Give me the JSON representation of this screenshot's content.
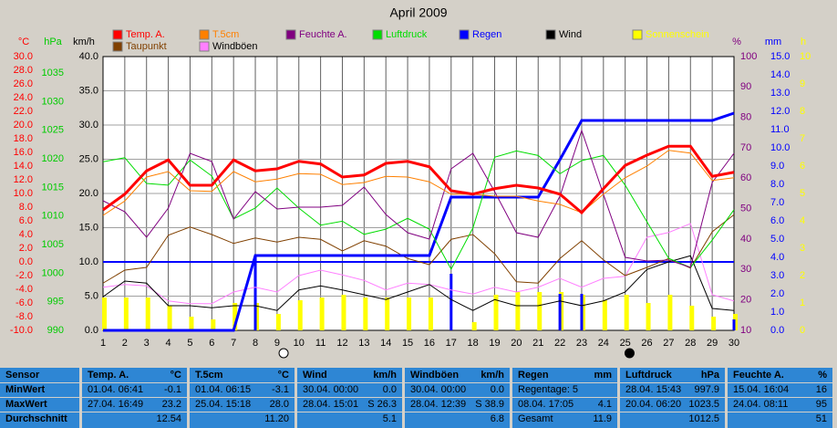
{
  "chart_data": {
    "type": "line",
    "title": "April 2009",
    "x": [
      1,
      2,
      3,
      4,
      5,
      6,
      7,
      8,
      9,
      10,
      11,
      12,
      13,
      14,
      15,
      16,
      17,
      18,
      19,
      20,
      21,
      22,
      23,
      24,
      25,
      26,
      27,
      28,
      29,
      30
    ],
    "xlim": [
      1,
      30
    ],
    "xticks": [
      1,
      2,
      3,
      4,
      5,
      6,
      7,
      8,
      9,
      10,
      11,
      12,
      13,
      14,
      15,
      16,
      17,
      18,
      19,
      20,
      21,
      22,
      23,
      24,
      25,
      26,
      27,
      28,
      29,
      30
    ],
    "grid": true,
    "grid_axis": 2,
    "freeze_line": 0,
    "moon": {
      "full": 9.3,
      "new": 25.2
    },
    "axes": [
      {
        "label": "°C",
        "color": "#ff0000",
        "ylim": [
          -10,
          30
        ],
        "yticks": [
          {
            "value": -10,
            "label": "-10.0"
          },
          {
            "value": -8,
            "label": "-8.0"
          },
          {
            "value": -6,
            "label": "-6.0"
          },
          {
            "value": -4,
            "label": "-4.0"
          },
          {
            "value": -2,
            "label": "-2.0"
          },
          {
            "value": 0,
            "label": "0.0"
          },
          {
            "value": 2,
            "label": "2.0"
          },
          {
            "value": 4,
            "label": "4.0"
          },
          {
            "value": 6,
            "label": "6.0"
          },
          {
            "value": 8,
            "label": "8.0"
          },
          {
            "value": 10,
            "label": "10.0"
          },
          {
            "value": 12,
            "label": "12.0"
          },
          {
            "value": 14,
            "label": "14.0"
          },
          {
            "value": 16,
            "label": "16.0"
          },
          {
            "value": 18,
            "label": "18.0"
          },
          {
            "value": 20,
            "label": "20.0"
          },
          {
            "value": 22,
            "label": "22.0"
          },
          {
            "value": 24,
            "label": "24.0"
          },
          {
            "value": 26,
            "label": "26.0"
          },
          {
            "value": 28,
            "label": "28.0"
          },
          {
            "value": 30,
            "label": "30.0"
          }
        ]
      },
      {
        "label": "hPa",
        "color": "#00cc00",
        "ylim": [
          990,
          1037.9
        ],
        "yticks": [
          990,
          995,
          1000,
          1005,
          1010,
          1015,
          1020,
          1025,
          1030,
          1035
        ]
      },
      {
        "label": "km/h",
        "color": "#000000",
        "ylim": [
          0,
          40
        ],
        "yticks": [
          {
            "value": 0,
            "label": "0.0"
          },
          {
            "value": 5,
            "label": "5.0"
          },
          {
            "value": 10,
            "label": "10.0"
          },
          {
            "value": 15,
            "label": "15.0"
          },
          {
            "value": 20,
            "label": "20.0"
          },
          {
            "value": 25,
            "label": "25.0"
          },
          {
            "value": 30,
            "label": "30.0"
          },
          {
            "value": 35,
            "label": "35.0"
          },
          {
            "value": 40,
            "label": "40.0"
          }
        ]
      },
      {
        "label": "%",
        "color": "#800080",
        "ylim": [
          10,
          100
        ],
        "yticks": [
          10,
          20,
          30,
          40,
          50,
          60,
          70,
          80,
          90,
          100
        ]
      },
      {
        "label": "mm",
        "color": "#0000ff",
        "ylim": [
          0,
          15
        ],
        "yticks": [
          {
            "value": 0,
            "label": "0.0"
          },
          {
            "value": 1,
            "label": "1.0"
          },
          {
            "value": 2,
            "label": "2.0"
          },
          {
            "value": 3,
            "label": "3.0"
          },
          {
            "value": 4,
            "label": "4.0"
          },
          {
            "value": 5,
            "label": "5.0"
          },
          {
            "value": 6,
            "label": "6.0"
          },
          {
            "value": 7,
            "label": "7.0"
          },
          {
            "value": 8,
            "label": "8.0"
          },
          {
            "value": 9,
            "label": "9.0"
          },
          {
            "value": 10,
            "label": "10.0"
          },
          {
            "value": 11,
            "label": "11.0"
          },
          {
            "value": 12,
            "label": "12.0"
          },
          {
            "value": 13,
            "label": "13.0"
          },
          {
            "value": 14,
            "label": "14.0"
          },
          {
            "value": 15,
            "label": "15.0"
          }
        ]
      },
      {
        "label": "h",
        "color": "#ffff00",
        "ylim": [
          0,
          10
        ],
        "yticks": [
          0,
          1,
          2,
          3,
          4,
          5,
          6,
          7,
          8,
          9,
          10
        ]
      }
    ],
    "series": [
      {
        "name": "Temp. A.",
        "color": "#ff0000",
        "text_color": "#ff0000",
        "axis": 0,
        "kind": "line",
        "width": 3,
        "values": [
          7.6,
          9.9,
          13.3,
          14.9,
          11.2,
          11.2,
          14.9,
          13.3,
          13.6,
          14.7,
          14.3,
          12.4,
          12.7,
          14.4,
          14.7,
          13.9,
          10.4,
          9.9,
          10.7,
          11.2,
          10.8,
          9.9,
          7.2,
          10.7,
          14.1,
          15.6,
          16.9,
          16.9,
          12.5,
          13.1
        ]
      },
      {
        "name": "T.5cm",
        "color": "#ff8000",
        "text_color": "#ff8000",
        "axis": 0,
        "kind": "line",
        "width": 1,
        "values": [
          6.8,
          8.9,
          12.4,
          13.2,
          10.4,
          10.3,
          13.2,
          11.7,
          12.1,
          12.9,
          12.8,
          11.3,
          11.6,
          12.5,
          12.4,
          11.7,
          9.9,
          9.9,
          9.6,
          9.6,
          8.9,
          8.4,
          7.2,
          9.9,
          12.3,
          14.0,
          16.3,
          15.9,
          11.9,
          12.3
        ]
      },
      {
        "name": "Feuchte A.",
        "color": "#800080",
        "text_color": "#800080",
        "axis": 3,
        "kind": "line",
        "width": 1,
        "values": [
          52.6,
          49,
          40.6,
          50.2,
          68.2,
          65.5,
          46.6,
          55.6,
          49.9,
          50.5,
          50.5,
          51.1,
          57.1,
          48.1,
          42.1,
          40,
          63.1,
          68.2,
          55.6,
          42.1,
          40.6,
          54.1,
          75.7,
          54.7,
          34,
          32.8,
          33.1,
          30.7,
          58.6,
          68.2
        ]
      },
      {
        "name": "Luftdruck",
        "color": "#00dd00",
        "text_color": "#00dd00",
        "axis": 1,
        "kind": "line",
        "width": 1,
        "values": [
          1019.5,
          1020.2,
          1015.7,
          1015.4,
          1019.8,
          1017,
          1009.5,
          1011.4,
          1014.9,
          1011.4,
          1008.4,
          1009.1,
          1006.8,
          1007.7,
          1009.6,
          1007.7,
          1000.7,
          1007.9,
          1020.3,
          1021.4,
          1020.6,
          1017.4,
          1019.7,
          1020.6,
          1015.4,
          1009,
          1002.6,
          1001,
          1005.8,
          1011.1
        ]
      },
      {
        "name": "Regen",
        "color": "#0000ff",
        "text_color": "#0000ff",
        "axis": 4,
        "kind": "line",
        "width": 3,
        "values": [
          0,
          0,
          0,
          0,
          0,
          0,
          0,
          4.1,
          4.1,
          4.1,
          4.1,
          4.1,
          4.1,
          4.1,
          4.1,
          4.1,
          7.3,
          7.3,
          7.3,
          7.3,
          7.3,
          9.35,
          11.5,
          11.5,
          11.5,
          11.5,
          11.5,
          11.5,
          11.5,
          11.9
        ],
        "daily_values": [
          0,
          0,
          0,
          0,
          0,
          0,
          0,
          4.1,
          0,
          0,
          0,
          0,
          0,
          0,
          0,
          0,
          3.1,
          0,
          0,
          0,
          0,
          2,
          2,
          0,
          0,
          0,
          0,
          0,
          0,
          0.6
        ]
      },
      {
        "name": "Wind",
        "color": "#000000",
        "text_color": "#000000",
        "axis": 2,
        "kind": "line",
        "width": 1,
        "values": [
          4.9,
          7.2,
          6.9,
          3.6,
          3.6,
          3.3,
          3.6,
          3.6,
          2.9,
          5.9,
          6.5,
          5.9,
          5.2,
          4.5,
          5.6,
          6.7,
          4.5,
          2.9,
          4.5,
          3.6,
          3.6,
          4.3,
          3.6,
          4.3,
          5.6,
          8.9,
          10,
          10.9,
          3.2,
          2.9
        ]
      },
      {
        "name": "Sonnenschein",
        "color": "#ffff00",
        "text_color": "#ffff00",
        "axis": 5,
        "kind": "bar",
        "width": 5,
        "values": [
          1.2,
          1.2,
          1.2,
          0.9,
          0.5,
          0.4,
          1.0,
          1.0,
          0.6,
          1.1,
          1.2,
          1.3,
          1.2,
          1.2,
          1.2,
          1.2,
          0,
          0.3,
          1.3,
          1.4,
          1.4,
          1.4,
          1.3,
          1.1,
          1.3,
          1.0,
          1.3,
          0.9,
          0.5,
          0.6
        ]
      },
      {
        "name": "Taupunkt",
        "color": "#804000",
        "text_color": "#804000",
        "axis": 0,
        "kind": "line",
        "width": 1,
        "values": [
          -3.1,
          -1.2,
          -0.8,
          3.9,
          5.1,
          4,
          2.7,
          3.5,
          2.9,
          3.6,
          3.3,
          1.6,
          3.1,
          2.3,
          0.5,
          -0.4,
          3.3,
          4,
          1.2,
          -2.9,
          -3.1,
          0.5,
          3.1,
          0.3,
          -2,
          -0.8,
          0.5,
          -0.9,
          4.4,
          6.9
        ]
      },
      {
        "name": "Windböen",
        "color": "#ff80ff",
        "text_color": "#000000",
        "axis": 2,
        "kind": "line",
        "width": 1,
        "values": [
          6.3,
          6.7,
          6.5,
          4.3,
          3.9,
          3.9,
          5.6,
          6.3,
          5.6,
          8,
          8.8,
          8.1,
          7.3,
          5.9,
          6.9,
          6.7,
          5.9,
          5.3,
          6.3,
          5.6,
          6.3,
          7.6,
          6.3,
          7.6,
          7.9,
          13.6,
          14.3,
          15.6,
          5.2,
          4.3
        ]
      }
    ]
  },
  "table": {
    "columns": [
      {
        "header": "Sensor",
        "rows": [
          {
            "left": "MinWert"
          },
          {
            "left": "MaxWert"
          },
          {
            "left": "Durchschnitt"
          }
        ]
      },
      {
        "header": "Temp. A.",
        "unit": "°C",
        "rows": [
          {
            "left": "01.04.  06:41",
            "right": "-0.1"
          },
          {
            "left": "27.04.  16:49",
            "right": "23.2"
          },
          {
            "right": "12.54"
          }
        ]
      },
      {
        "header": "T.5cm",
        "unit": "°C",
        "rows": [
          {
            "left": "01.04.  06:15",
            "right": "-3.1"
          },
          {
            "left": "25.04.  15:18",
            "right": "28.0"
          },
          {
            "right": "11.20"
          }
        ]
      },
      {
        "header": "Wind",
        "unit": "km/h",
        "rows": [
          {
            "left": "30.04.  00:00",
            "right": "0.0"
          },
          {
            "left": "28.04.  15:01",
            "right": "S 26.3"
          },
          {
            "right": "5.1"
          }
        ]
      },
      {
        "header": "Windböen",
        "unit": "km/h",
        "rows": [
          {
            "left": "30.04.  00:00",
            "right": "0.0"
          },
          {
            "left": "28.04.  12:39",
            "right": "S 38.9"
          },
          {
            "right": "6.8"
          }
        ]
      },
      {
        "header": "Regen",
        "unit": "mm",
        "rows": [
          {
            "left": "Regentage: 5"
          },
          {
            "left": "08.04.  17:05",
            "right": "4.1"
          },
          {
            "left": "Gesamt",
            "right": "11.9"
          }
        ]
      },
      {
        "header": "Luftdruck",
        "unit": "hPa",
        "rows": [
          {
            "left": "28.04.  15:43",
            "right": "997.9"
          },
          {
            "left": "20.04.  06:20",
            "right": "1023.5"
          },
          {
            "right": "1012.5"
          }
        ]
      },
      {
        "header": "Feuchte A.",
        "unit": "%",
        "rows": [
          {
            "left": "15.04.  16:04",
            "right": "16"
          },
          {
            "left": "24.04.  08:11",
            "right": "95"
          },
          {
            "right": "51"
          }
        ]
      }
    ]
  }
}
